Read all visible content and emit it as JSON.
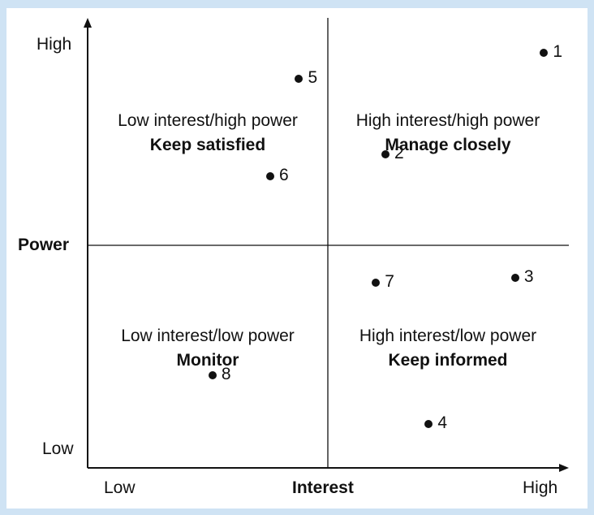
{
  "axes": {
    "y": {
      "title": "Power",
      "high": "High",
      "low": "Low"
    },
    "x": {
      "title": "Interest",
      "high": "High",
      "low": "Low"
    }
  },
  "quadrants": {
    "top_left": {
      "description": "Low interest/high power",
      "action": "Keep satisfied"
    },
    "top_right": {
      "description": "High interest/high power",
      "action": "Manage closely"
    },
    "bottom_left": {
      "description": "Low interest/low power",
      "action": "Monitor"
    },
    "bottom_right": {
      "description": "High interest/low power",
      "action": "Keep informed"
    }
  },
  "chart_data": {
    "type": "scatter",
    "xlabel": "Interest",
    "ylabel": "Power",
    "xlim": [
      0,
      10
    ],
    "ylim": [
      0,
      10
    ],
    "points": [
      {
        "label": "1",
        "x": 9.5,
        "y": 9.4
      },
      {
        "label": "2",
        "x": 6.2,
        "y": 7.1
      },
      {
        "label": "3",
        "x": 8.9,
        "y": 4.3
      },
      {
        "label": "4",
        "x": 7.1,
        "y": 1.0
      },
      {
        "label": "5",
        "x": 4.4,
        "y": 8.8
      },
      {
        "label": "6",
        "x": 3.8,
        "y": 6.6
      },
      {
        "label": "7",
        "x": 6.0,
        "y": 4.2
      },
      {
        "label": "8",
        "x": 2.6,
        "y": 2.1
      }
    ]
  },
  "colors": {
    "background": "#cfe3f4",
    "panel": "#ffffff",
    "ink": "#111111"
  }
}
